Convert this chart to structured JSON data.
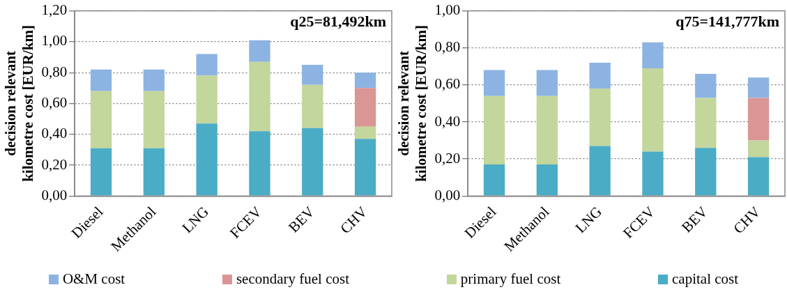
{
  "chart_data": [
    {
      "type": "bar",
      "stacked": true,
      "categories": [
        "Diesel",
        "Methanol",
        "LNG",
        "FCEV",
        "BEV",
        "CHV"
      ],
      "ylabel": "decision relevant kilometre cost [EUR/km]",
      "ylim": [
        0,
        1.2
      ],
      "yticks": [
        {
          "value": 0,
          "label": "0,00"
        },
        {
          "value": 0.2,
          "label": "0,20"
        },
        {
          "value": 0.4,
          "label": "0,40"
        },
        {
          "value": 0.6,
          "label": "0,60"
        },
        {
          "value": 0.8,
          "label": "0,80"
        },
        {
          "value": 1,
          "label": "1,00"
        },
        {
          "value": 1.2,
          "label": "1,20"
        }
      ],
      "grid": "y",
      "legend": "bottom",
      "annotations": [
        "q25=81,492km"
      ],
      "series": [
        {
          "name": "capital cost",
          "color": "#4bacc6",
          "values": [
            0.31,
            0.31,
            0.47,
            0.42,
            0.44,
            0.37
          ]
        },
        {
          "name": "primary fuel cost",
          "color": "#c3d69b",
          "values": [
            0.37,
            0.37,
            0.31,
            0.45,
            0.28,
            0.08
          ]
        },
        {
          "name": "secondary fuel cost",
          "color": "#d99694",
          "values": [
            0,
            0,
            0,
            0,
            0,
            0.25
          ]
        },
        {
          "name": "O&M cost",
          "color": "#8db3e2",
          "values": [
            0.14,
            0.14,
            0.14,
            0.14,
            0.13,
            0.1
          ]
        }
      ]
    },
    {
      "type": "bar",
      "stacked": true,
      "categories": [
        "Diesel",
        "Methanol",
        "LNG",
        "FCEV",
        "BEV",
        "CHV"
      ],
      "ylabel": "decision relevant kilometre cost [EUR/km]",
      "ylim": [
        0,
        1
      ],
      "yticks": [
        {
          "value": 0,
          "label": "0,00"
        },
        {
          "value": 0.2,
          "label": "0,20"
        },
        {
          "value": 0.4,
          "label": "0,40"
        },
        {
          "value": 0.6,
          "label": "0,60"
        },
        {
          "value": 0.8,
          "label": "0,80"
        },
        {
          "value": 1,
          "label": "1,00"
        }
      ],
      "grid": "y",
      "annotations": [
        "q75=141,777km"
      ],
      "series": [
        {
          "color": "#4bacc6",
          "values": [
            0.17,
            0.17,
            0.27,
            0.24,
            0.26,
            0.21
          ]
        },
        {
          "color": "#c3d69b",
          "values": [
            0.37,
            0.37,
            0.31,
            0.45,
            0.27,
            0.09
          ]
        },
        {
          "color": "#d99694",
          "values": [
            0,
            0,
            0,
            0,
            0,
            0.23
          ]
        },
        {
          "color": "#8db3e2",
          "values": [
            0.14,
            0.14,
            0.14,
            0.14,
            0.13,
            0.11
          ]
        }
      ]
    }
  ]
}
